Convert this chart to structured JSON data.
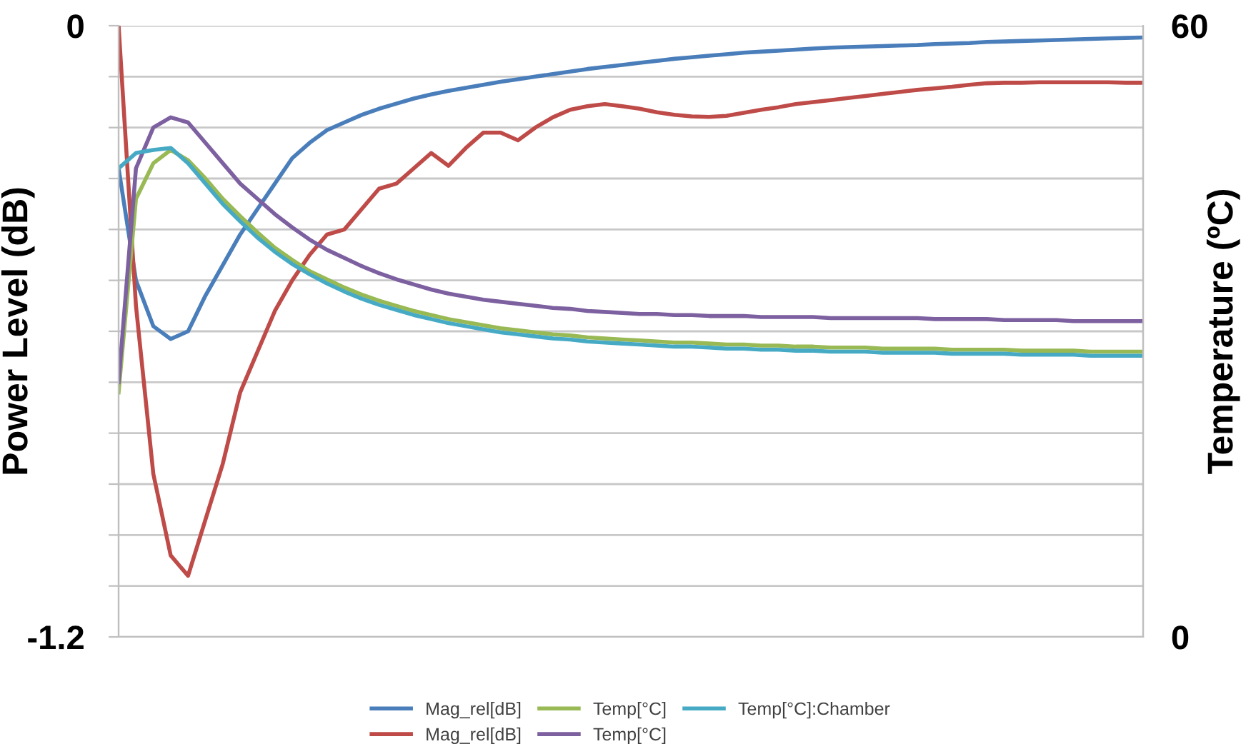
{
  "chart_data": {
    "type": "line",
    "ylabel": "Power Level (dB)",
    "y2label": "Temperature (ºC)",
    "categories": [
      null,
      null,
      null,
      null,
      null,
      null,
      null,
      null,
      null,
      null,
      null,
      null,
      null,
      null,
      null,
      null,
      null,
      null,
      null,
      null,
      null,
      null,
      null,
      null,
      null,
      null,
      null,
      null,
      null,
      null,
      null,
      null,
      null,
      null,
      null,
      null,
      null,
      null,
      null,
      null,
      null,
      null,
      null,
      null,
      null,
      null,
      null,
      null,
      null,
      null,
      null,
      null,
      null,
      null,
      null,
      null,
      null,
      null,
      null,
      null
    ],
    "ylim": [
      -1.2,
      0
    ],
    "yticks": [
      {
        "value": -1.2,
        "label": "-1.2"
      },
      {
        "value": -1.1,
        "label": null
      },
      {
        "value": -1.0,
        "label": null
      },
      {
        "value": -0.9,
        "label": null
      },
      {
        "value": -0.8,
        "label": null
      },
      {
        "value": -0.7,
        "label": null
      },
      {
        "value": -0.6,
        "label": null
      },
      {
        "value": -0.5,
        "label": null
      },
      {
        "value": -0.4,
        "label": null
      },
      {
        "value": -0.3,
        "label": null
      },
      {
        "value": -0.2,
        "label": null
      },
      {
        "value": -0.1,
        "label": null
      },
      0
    ],
    "y2lim": [
      0,
      60
    ],
    "y2ticks": [
      0,
      60
    ],
    "grid": "y",
    "legend": "bottom",
    "series": [
      {
        "name": "Mag_rel[dB]",
        "color": "#4a7ebb",
        "values": [
          -0.28,
          -0.5,
          -0.59,
          -0.615,
          -0.6,
          -0.53,
          -0.47,
          -0.41,
          -0.36,
          -0.31,
          -0.26,
          -0.23,
          -0.205,
          -0.19,
          -0.175,
          -0.163,
          -0.153,
          -0.143,
          -0.135,
          -0.128,
          -0.122,
          -0.116,
          -0.11,
          -0.105,
          -0.1,
          -0.095,
          -0.09,
          -0.085,
          -0.081,
          -0.077,
          -0.073,
          -0.069,
          -0.065,
          -0.062,
          -0.059,
          -0.056,
          -0.053,
          -0.051,
          -0.049,
          -0.047,
          -0.045,
          -0.043,
          -0.042,
          -0.041,
          -0.04,
          -0.039,
          -0.038,
          -0.036,
          -0.035,
          -0.034,
          -0.032,
          -0.031,
          -0.03,
          -0.029,
          -0.028,
          -0.027,
          -0.026,
          -0.025,
          -0.024,
          -0.023
        ]
      },
      {
        "name": "Mag_rel[dB]",
        "color": "#be4b48",
        "values": [
          0,
          -0.55,
          -0.88,
          -1.04,
          -1.08,
          -0.97,
          -0.86,
          -0.72,
          -0.64,
          -0.56,
          -0.5,
          -0.45,
          -0.41,
          -0.4,
          -0.36,
          -0.32,
          -0.31,
          -0.28,
          -0.25,
          -0.275,
          -0.24,
          -0.21,
          -0.21,
          -0.225,
          -0.2,
          -0.18,
          -0.165,
          -0.158,
          -0.154,
          -0.158,
          -0.163,
          -0.17,
          -0.175,
          -0.178,
          -0.179,
          -0.177,
          -0.171,
          -0.165,
          -0.16,
          -0.154,
          -0.15,
          -0.146,
          -0.142,
          -0.138,
          -0.134,
          -0.13,
          -0.126,
          -0.123,
          -0.12,
          -0.116,
          -0.113,
          -0.112,
          -0.112,
          -0.111,
          -0.111,
          -0.111,
          -0.111,
          -0.111,
          -0.112,
          -0.112
        ]
      },
      {
        "name": "Temp[°C]",
        "color": "#98b954",
        "axis": "y2",
        "values": [
          24,
          43,
          46.5,
          47.8,
          46.8,
          45,
          43,
          41.3,
          39.7,
          38.2,
          37,
          35.9,
          35.1,
          34.3,
          33.6,
          33.0,
          32.5,
          32.0,
          31.6,
          31.2,
          30.9,
          30.6,
          30.3,
          30.1,
          29.9,
          29.7,
          29.6,
          29.4,
          29.3,
          29.2,
          29.1,
          29.0,
          28.9,
          28.9,
          28.8,
          28.7,
          28.7,
          28.6,
          28.6,
          28.5,
          28.5,
          28.4,
          28.4,
          28.4,
          28.3,
          28.3,
          28.3,
          28.3,
          28.2,
          28.2,
          28.2,
          28.2,
          28.1,
          28.1,
          28.1,
          28.1,
          28.0,
          28.0,
          28.0,
          28.0
        ]
      },
      {
        "name": "Temp[°C]",
        "color": "#7d60a0",
        "axis": "y2",
        "values": [
          25,
          46,
          50,
          51,
          50.5,
          48.5,
          46.5,
          44.5,
          43,
          41.5,
          40.2,
          39,
          38,
          37.2,
          36.4,
          35.7,
          35.1,
          34.6,
          34.1,
          33.7,
          33.4,
          33.1,
          32.9,
          32.7,
          32.5,
          32.3,
          32.2,
          32.0,
          31.9,
          31.8,
          31.7,
          31.7,
          31.6,
          31.6,
          31.5,
          31.5,
          31.5,
          31.4,
          31.4,
          31.4,
          31.4,
          31.3,
          31.3,
          31.3,
          31.3,
          31.3,
          31.3,
          31.2,
          31.2,
          31.2,
          31.2,
          31.1,
          31.1,
          31.1,
          31.1,
          31.0,
          31.0,
          31.0,
          31.0,
          31.0
        ]
      },
      {
        "name": "Temp[°C]:Chamber",
        "color": "#46aac5",
        "axis": "y2",
        "values": [
          46,
          47.5,
          47.8,
          48,
          46.5,
          44.5,
          42.5,
          40.8,
          39.2,
          37.8,
          36.6,
          35.6,
          34.7,
          33.9,
          33.2,
          32.6,
          32.1,
          31.6,
          31.2,
          30.8,
          30.5,
          30.2,
          29.9,
          29.7,
          29.5,
          29.3,
          29.2,
          29.0,
          28.9,
          28.8,
          28.7,
          28.6,
          28.5,
          28.5,
          28.4,
          28.3,
          28.3,
          28.2,
          28.2,
          28.1,
          28.1,
          28.0,
          28.0,
          28.0,
          27.9,
          27.9,
          27.9,
          27.9,
          27.8,
          27.8,
          27.8,
          27.8,
          27.7,
          27.7,
          27.7,
          27.7,
          27.6,
          27.6,
          27.6,
          27.6
        ]
      }
    ]
  }
}
